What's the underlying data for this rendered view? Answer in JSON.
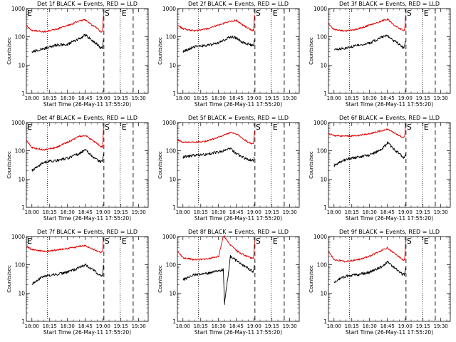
{
  "chart_data": [
    {
      "type": "line",
      "title": "Det 1f BLACK = Events, RED = LLD",
      "xlabel": "Start Time (26-May-11 17:55:20)",
      "ylabel": "Counts/sec",
      "y_scale": "log",
      "ylim": [
        1,
        1000
      ],
      "y_ticks": [
        "1",
        "10",
        "100",
        "1000"
      ],
      "xlim": [
        "17:55:20",
        "19:38:00"
      ],
      "x_ticks": [
        "18:00",
        "18:15",
        "18:30",
        "18:45",
        "19:00",
        "19:15",
        "19:30"
      ],
      "markers": [
        {
          "label": "E",
          "time": "17:55:20"
        },
        {
          "label": "S",
          "time": "19:00:40"
        },
        {
          "label": "E",
          "time": "19:15:00"
        }
      ],
      "vlines": {
        "dotted": [
          "18:13:00",
          "19:14:20"
        ],
        "dashed": [
          "19:00:40",
          "19:25:20"
        ]
      },
      "series": [
        {
          "name": "BLACK = Events",
          "color": "#000000",
          "x": [
            "18:00:00",
            "18:10:00",
            "18:20:00",
            "18:30:00",
            "18:40:00",
            "18:45:00",
            "18:50:00",
            "18:55:00",
            "18:58:00",
            "18:59:30",
            "19:00:20"
          ],
          "y": [
            30,
            38,
            50,
            55,
            85,
            115,
            80,
            55,
            40,
            42,
            80
          ]
        },
        {
          "name": "RED = LLD",
          "color": "#e00000",
          "x": [
            "17:55:20",
            "18:00:00",
            "18:10:00",
            "18:20:00",
            "18:30:00",
            "18:40:00",
            "18:45:00",
            "18:50:00",
            "18:55:00",
            "18:58:00",
            "18:59:30",
            "19:00:20"
          ],
          "y": [
            250,
            170,
            150,
            180,
            250,
            360,
            400,
            270,
            200,
            150,
            150,
            700
          ]
        }
      ]
    },
    {
      "type": "line",
      "title": "Det 2f BLACK = Events, RED = LLD",
      "xlabel": "Start Time (26-May-11 17:55:20)",
      "ylabel": "Counts/sec",
      "y_scale": "log",
      "ylim": [
        1,
        1000
      ],
      "y_ticks": [
        "1",
        "10",
        "100",
        "1000"
      ],
      "xlim": [
        "17:55:20",
        "19:38:00"
      ],
      "x_ticks": [
        "18:00",
        "18:15",
        "18:30",
        "18:45",
        "19:00",
        "19:15",
        "19:30"
      ],
      "markers": [
        {
          "label": "S",
          "time": "19:00:40"
        },
        {
          "label": "E",
          "time": "19:15:00"
        }
      ],
      "vlines": {
        "dotted": [
          "18:13:00",
          "19:14:20"
        ],
        "dashed": [
          "19:00:40",
          "19:25:20"
        ]
      },
      "series": [
        {
          "name": "BLACK = Events",
          "color": "#000000",
          "x": [
            "18:00:00",
            "18:10:00",
            "18:20:00",
            "18:30:00",
            "18:40:00",
            "18:45:00",
            "18:50:00",
            "18:55:00",
            "18:58:00",
            "18:59:30",
            "19:00:20"
          ],
          "y": [
            30,
            45,
            50,
            60,
            100,
            90,
            65,
            55,
            50,
            50,
            80
          ]
        },
        {
          "name": "RED = LLD",
          "color": "#e00000",
          "x": [
            "17:55:20",
            "18:00:00",
            "18:10:00",
            "18:20:00",
            "18:30:00",
            "18:40:00",
            "18:45:00",
            "18:50:00",
            "18:55:00",
            "18:58:00",
            "18:59:30",
            "19:00:20"
          ],
          "y": [
            260,
            190,
            160,
            190,
            260,
            360,
            380,
            270,
            200,
            170,
            170,
            600
          ]
        }
      ]
    },
    {
      "type": "line",
      "title": "Det 3f BLACK = Events, RED = LLD",
      "xlabel": "Start Time (26-May-11 17:55:20)",
      "ylabel": "Counts/sec",
      "y_scale": "log",
      "ylim": [
        1,
        1000
      ],
      "y_ticks": [
        "1",
        "10",
        "100",
        "1000"
      ],
      "xlim": [
        "17:55:20",
        "19:38:00"
      ],
      "x_ticks": [
        "18:00",
        "18:15",
        "18:30",
        "18:45",
        "19:00",
        "19:15",
        "19:30"
      ],
      "markers": [
        {
          "label": "S",
          "time": "19:00:40"
        },
        {
          "label": "E",
          "time": "19:15:00"
        }
      ],
      "vlines": {
        "dotted": [
          "18:13:00",
          "19:14:20"
        ],
        "dashed": [
          "19:00:40",
          "19:25:20"
        ]
      },
      "series": [
        {
          "name": "BLACK = Events",
          "color": "#000000",
          "x": [
            "18:00:00",
            "18:10:00",
            "18:20:00",
            "18:30:00",
            "18:40:00",
            "18:45:00",
            "18:50:00",
            "18:55:00",
            "18:58:00",
            "18:59:30",
            "19:00:20"
          ],
          "y": [
            35,
            40,
            50,
            60,
            95,
            110,
            75,
            55,
            42,
            45,
            70
          ]
        },
        {
          "name": "RED = LLD",
          "color": "#e00000",
          "x": [
            "17:55:20",
            "18:00:00",
            "18:10:00",
            "18:20:00",
            "18:30:00",
            "18:40:00",
            "18:45:00",
            "18:50:00",
            "18:55:00",
            "18:58:00",
            "18:59:30",
            "19:00:20"
          ],
          "y": [
            300,
            180,
            160,
            190,
            260,
            360,
            420,
            270,
            200,
            170,
            170,
            600
          ]
        }
      ]
    },
    {
      "type": "line",
      "title": "Det 4f BLACK = Events, RED = LLD",
      "xlabel": "Start Time (26-May-11 17:55:20)",
      "ylabel": "Counts/sec",
      "y_scale": "log",
      "ylim": [
        1,
        1000
      ],
      "y_ticks": [
        "1",
        "10",
        "100",
        "1000"
      ],
      "xlim": [
        "17:55:20",
        "19:38:00"
      ],
      "x_ticks": [
        "18:00",
        "18:15",
        "18:30",
        "18:45",
        "19:00",
        "19:15",
        "19:30"
      ],
      "markers": [
        {
          "label": "E",
          "time": "17:55:20"
        },
        {
          "label": "S",
          "time": "19:00:40"
        },
        {
          "label": "E",
          "time": "19:15:00"
        }
      ],
      "vlines": {
        "dotted": [
          "18:13:00",
          "19:14:20"
        ],
        "dashed": [
          "19:00:40",
          "19:25:20"
        ]
      },
      "series": [
        {
          "name": "BLACK = Events",
          "color": "#000000",
          "x": [
            "18:00:00",
            "18:10:00",
            "18:20:00",
            "18:30:00",
            "18:40:00",
            "18:45:00",
            "18:50:00",
            "18:55:00",
            "18:58:00",
            "18:59:30",
            "19:00:20"
          ],
          "y": [
            20,
            40,
            45,
            55,
            80,
            110,
            70,
            50,
            40,
            45,
            80
          ]
        },
        {
          "name": "RED = LLD",
          "color": "#e00000",
          "x": [
            "17:55:20",
            "18:00:00",
            "18:10:00",
            "18:20:00",
            "18:30:00",
            "18:40:00",
            "18:45:00",
            "18:50:00",
            "18:55:00",
            "18:58:00",
            "18:59:30",
            "19:00:20"
          ],
          "y": [
            240,
            130,
            110,
            130,
            200,
            320,
            350,
            250,
            180,
            140,
            140,
            700
          ]
        }
      ]
    },
    {
      "type": "line",
      "title": "Det 5f BLACK = Events, RED = LLD",
      "xlabel": "Start Time (26-May-11 17:55:20)",
      "ylabel": "Counts/sec",
      "y_scale": "log",
      "ylim": [
        1,
        1000
      ],
      "y_ticks": [
        "1",
        "10",
        "100",
        "1000"
      ],
      "xlim": [
        "17:55:20",
        "19:38:00"
      ],
      "x_ticks": [
        "18:00",
        "18:15",
        "18:30",
        "18:45",
        "19:00",
        "19:15",
        "19:30"
      ],
      "markers": [
        {
          "label": "S",
          "time": "19:00:40"
        },
        {
          "label": "E",
          "time": "19:15:00"
        }
      ],
      "vlines": {
        "dotted": [
          "18:13:00",
          "19:14:20"
        ],
        "dashed": [
          "19:00:40",
          "19:25:20"
        ]
      },
      "series": [
        {
          "name": "BLACK = Events",
          "color": "#000000",
          "x": [
            "18:00:00",
            "18:10:00",
            "18:20:00",
            "18:30:00",
            "18:40:00",
            "18:45:00",
            "18:50:00",
            "18:55:00",
            "18:58:00",
            "18:59:30",
            "19:00:20"
          ],
          "y": [
            60,
            70,
            75,
            90,
            120,
            80,
            60,
            50,
            45,
            45,
            60
          ]
        },
        {
          "name": "RED = LLD",
          "color": "#e00000",
          "x": [
            "17:55:20",
            "18:00:00",
            "18:10:00",
            "18:20:00",
            "18:30:00",
            "18:40:00",
            "18:45:00",
            "18:50:00",
            "18:55:00",
            "18:58:00",
            "18:59:30",
            "19:00:20"
          ],
          "y": [
            250,
            200,
            200,
            220,
            300,
            440,
            400,
            280,
            200,
            180,
            180,
            500
          ]
        }
      ]
    },
    {
      "type": "line",
      "title": "Det 6f BLACK = Events, RED = LLD",
      "xlabel": "Start Time (26-May-11 17:55:20)",
      "ylabel": "Counts/sec",
      "y_scale": "log",
      "ylim": [
        1,
        1000
      ],
      "y_ticks": [
        "1",
        "10",
        "100",
        "1000"
      ],
      "xlim": [
        "17:55:20",
        "19:38:00"
      ],
      "x_ticks": [
        "18:00",
        "18:15",
        "18:30",
        "18:45",
        "19:00",
        "19:15",
        "19:30"
      ],
      "markers": [
        {
          "label": "S",
          "time": "19:00:40"
        },
        {
          "label": "E",
          "time": "19:15:00"
        }
      ],
      "vlines": {
        "dotted": [
          "18:13:00",
          "19:14:20"
        ],
        "dashed": [
          "19:00:40",
          "19:25:20"
        ]
      },
      "series": [
        {
          "name": "BLACK = Events",
          "color": "#000000",
          "x": [
            "18:00:00",
            "18:10:00",
            "18:20:00",
            "18:30:00",
            "18:40:00",
            "18:45:00",
            "18:50:00",
            "18:55:00",
            "18:58:00",
            "18:59:30",
            "19:00:20"
          ],
          "y": [
            30,
            50,
            60,
            70,
            110,
            190,
            120,
            80,
            60,
            60,
            80
          ]
        },
        {
          "name": "RED = LLD",
          "color": "#e00000",
          "x": [
            "17:55:20",
            "18:00:00",
            "18:10:00",
            "18:20:00",
            "18:30:00",
            "18:40:00",
            "18:45:00",
            "18:50:00",
            "18:55:00",
            "18:58:00",
            "18:59:30",
            "19:00:20"
          ],
          "y": [
            400,
            350,
            330,
            350,
            400,
            520,
            580,
            450,
            350,
            300,
            300,
            900
          ]
        }
      ]
    },
    {
      "type": "line",
      "title": "Det 7f BLACK = Events, RED = LLD",
      "xlabel": "Start Time (26-May-11 17:55:20)",
      "ylabel": "Counts/sec",
      "y_scale": "log",
      "ylim": [
        1,
        1000
      ],
      "y_ticks": [
        "1",
        "10",
        "100",
        "1000"
      ],
      "xlim": [
        "17:55:20",
        "19:38:00"
      ],
      "x_ticks": [
        "18:00",
        "18:15",
        "18:30",
        "18:45",
        "19:00",
        "19:15",
        "19:30"
      ],
      "markers": [
        {
          "label": "E",
          "time": "17:55:20"
        },
        {
          "label": "S",
          "time": "19:00:40"
        },
        {
          "label": "E",
          "time": "19:15:00"
        }
      ],
      "vlines": {
        "dotted": [
          "18:13:00",
          "19:14:20"
        ],
        "dashed": [
          "19:00:40",
          "19:25:20"
        ]
      },
      "series": [
        {
          "name": "BLACK = Events",
          "color": "#000000",
          "x": [
            "18:00:00",
            "18:10:00",
            "18:20:00",
            "18:30:00",
            "18:40:00",
            "18:45:00",
            "18:50:00",
            "18:55:00",
            "18:58:00",
            "18:59:30",
            "19:00:20"
          ],
          "y": [
            20,
            40,
            45,
            55,
            80,
            100,
            75,
            50,
            40,
            45,
            100
          ]
        },
        {
          "name": "RED = LLD",
          "color": "#e00000",
          "x": [
            "17:55:20",
            "18:00:00",
            "18:10:00",
            "18:20:00",
            "18:30:00",
            "18:40:00",
            "18:45:00",
            "18:50:00",
            "18:55:00",
            "18:58:00",
            "18:59:30",
            "19:00:20"
          ],
          "y": [
            450,
            350,
            300,
            330,
            380,
            450,
            480,
            380,
            300,
            280,
            280,
            900
          ]
        }
      ]
    },
    {
      "type": "line",
      "title": "Det 8f BLACK = Events, RED = LLD",
      "xlabel": "Start Time (26-May-11 17:55:20)",
      "ylabel": "Counts/sec",
      "y_scale": "log",
      "ylim": [
        1,
        1000
      ],
      "y_ticks": [
        "1",
        "10",
        "100",
        "1000"
      ],
      "xlim": [
        "17:55:20",
        "19:38:00"
      ],
      "x_ticks": [
        "18:00",
        "18:15",
        "18:30",
        "18:45",
        "19:00",
        "19:15",
        "19:30"
      ],
      "markers": [
        {
          "label": "S",
          "time": "19:00:40"
        },
        {
          "label": "E",
          "time": "19:15:00"
        }
      ],
      "vlines": {
        "dotted": [
          "18:13:00",
          "19:14:20"
        ],
        "dashed": [
          "19:00:40",
          "19:25:20"
        ]
      },
      "series": [
        {
          "name": "BLACK = Events",
          "color": "#000000",
          "x": [
            "18:00:00",
            "18:10:00",
            "18:20:00",
            "18:30:00",
            "18:34:00",
            "18:35:00",
            "18:40:00",
            "18:45:00",
            "18:50:00",
            "18:55:00",
            "18:58:00",
            "18:59:30",
            "19:00:20"
          ],
          "y": [
            30,
            45,
            50,
            60,
            70,
            4,
            200,
            140,
            100,
            75,
            60,
            60,
            100
          ]
        },
        {
          "name": "RED = LLD",
          "color": "#e00000",
          "x": [
            "17:55:20",
            "18:00:00",
            "18:10:00",
            "18:20:00",
            "18:30:00",
            "18:34:00",
            "18:35:00",
            "18:40:00",
            "18:45:00",
            "18:50:00",
            "18:55:00",
            "18:58:00",
            "18:59:30",
            "19:00:20"
          ],
          "y": [
            300,
            180,
            150,
            160,
            200,
            1000,
            1000,
            500,
            320,
            240,
            190,
            170,
            170,
            700
          ]
        }
      ]
    },
    {
      "type": "line",
      "title": "Det 9f BLACK = Events, RED = LLD",
      "xlabel": "Start Time (26-May-11 17:55:20)",
      "ylabel": "Counts/sec",
      "y_scale": "log",
      "ylim": [
        1,
        1000
      ],
      "y_ticks": [
        "1",
        "10",
        "100",
        "1000"
      ],
      "xlim": [
        "17:55:20",
        "19:38:00"
      ],
      "x_ticks": [
        "18:00",
        "18:15",
        "18:30",
        "18:45",
        "19:00",
        "19:15",
        "19:30"
      ],
      "markers": [
        {
          "label": "S",
          "time": "19:00:40"
        },
        {
          "label": "E",
          "time": "19:15:00"
        }
      ],
      "vlines": {
        "dotted": [
          "18:13:00",
          "19:14:20"
        ],
        "dashed": [
          "19:00:40",
          "19:25:20"
        ]
      },
      "series": [
        {
          "name": "BLACK = Events",
          "color": "#000000",
          "x": [
            "18:00:00",
            "18:10:00",
            "18:20:00",
            "18:30:00",
            "18:40:00",
            "18:45:00",
            "18:50:00",
            "18:55:00",
            "18:58:00",
            "18:59:30",
            "19:00:20"
          ],
          "y": [
            25,
            40,
            45,
            55,
            85,
            130,
            85,
            55,
            45,
            45,
            80
          ]
        },
        {
          "name": "RED = LLD",
          "color": "#e00000",
          "x": [
            "17:55:20",
            "18:00:00",
            "18:10:00",
            "18:20:00",
            "18:30:00",
            "18:40:00",
            "18:45:00",
            "18:50:00",
            "18:55:00",
            "18:58:00",
            "18:59:30",
            "19:00:20"
          ],
          "y": [
            300,
            150,
            130,
            150,
            200,
            320,
            400,
            270,
            190,
            150,
            150,
            700
          ]
        }
      ]
    }
  ]
}
